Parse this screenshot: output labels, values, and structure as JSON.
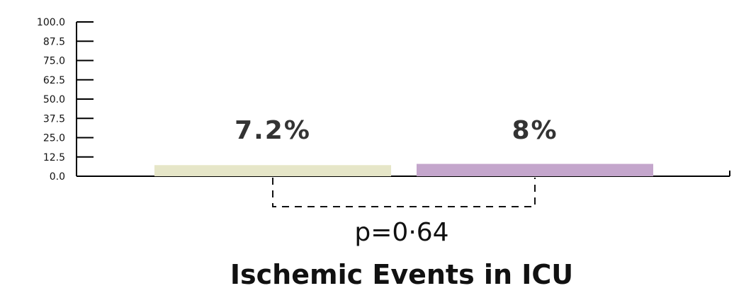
{
  "chart_data": {
    "type": "bar",
    "title": "Ischemic Events in ICU",
    "categories": [
      "",
      ""
    ],
    "values": [
      7.2,
      8.0
    ],
    "value_labels": [
      "7.2%",
      "8%"
    ],
    "bar_colors": [
      "#e6e6c8",
      "#c4a6cc"
    ],
    "ylim": [
      0,
      100
    ],
    "yticks": [
      "0.0",
      "12.5",
      "25.0",
      "37.5",
      "50.0",
      "62.5",
      "75.0",
      "87.5",
      "100.0"
    ],
    "grid": false,
    "annotation": {
      "type": "significance-bracket",
      "between": [
        0,
        1
      ],
      "text": "p=0·64"
    }
  }
}
